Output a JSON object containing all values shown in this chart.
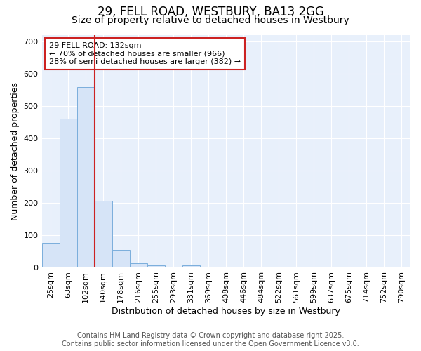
{
  "title_line1": "29, FELL ROAD, WESTBURY, BA13 2GG",
  "title_line2": "Size of property relative to detached houses in Westbury",
  "xlabel": "Distribution of detached houses by size in Westbury",
  "ylabel": "Number of detached properties",
  "categories": [
    "25sqm",
    "63sqm",
    "102sqm",
    "140sqm",
    "178sqm",
    "216sqm",
    "255sqm",
    "293sqm",
    "331sqm",
    "369sqm",
    "408sqm",
    "446sqm",
    "484sqm",
    "522sqm",
    "561sqm",
    "599sqm",
    "637sqm",
    "675sqm",
    "714sqm",
    "752sqm",
    "790sqm"
  ],
  "values": [
    78,
    462,
    560,
    207,
    55,
    15,
    8,
    0,
    8,
    0,
    0,
    0,
    0,
    0,
    0,
    0,
    0,
    0,
    0,
    0,
    0
  ],
  "bar_color": "#d6e4f7",
  "bar_edge_color": "#7aaedc",
  "annotation_box_text": "29 FELL ROAD: 132sqm\n← 70% of detached houses are smaller (966)\n28% of semi-detached houses are larger (382) →",
  "vline_color": "#cc2222",
  "vline_x_index": 2,
  "ylim": [
    0,
    720
  ],
  "yticks": [
    0,
    100,
    200,
    300,
    400,
    500,
    600,
    700
  ],
  "plot_bg_color": "#e8f0fb",
  "grid_color": "#ffffff",
  "fig_bg_color": "#ffffff",
  "title_fontsize": 12,
  "subtitle_fontsize": 10,
  "axis_label_fontsize": 9,
  "tick_fontsize": 8,
  "annotation_fontsize": 8,
  "footer_fontsize": 7,
  "footer_text": "Contains HM Land Registry data © Crown copyright and database right 2025.\nContains public sector information licensed under the Open Government Licence v3.0."
}
